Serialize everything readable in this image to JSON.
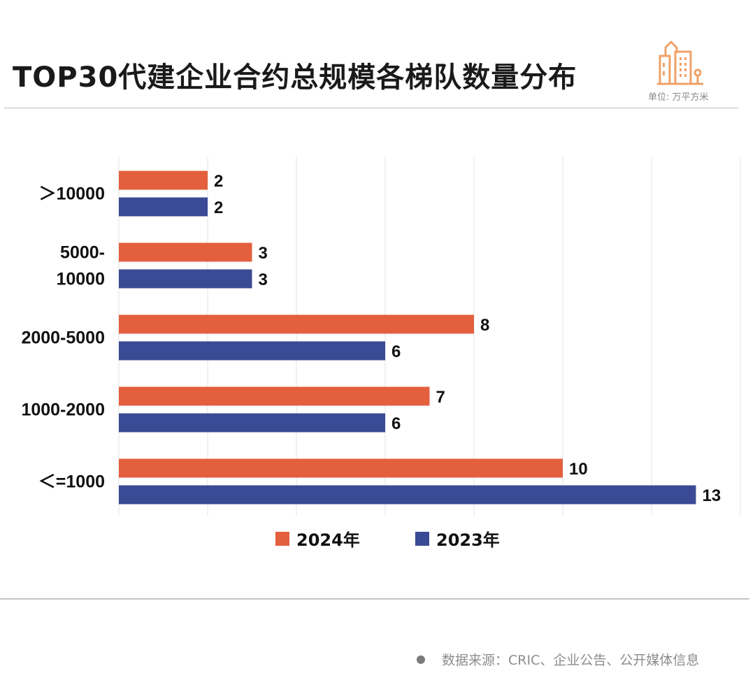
{
  "header": {
    "title": "TOP30代建企业合约总规模各梯队数量分布",
    "unit": "单位: 万平方米",
    "logo_icon": "city-buildings-icon",
    "logo_color": "#EFA168"
  },
  "footer": {
    "source": "数据来源：CRIC、企业公告、公开媒体信息"
  },
  "chart_data": {
    "type": "bar",
    "orientation": "horizontal",
    "title": "TOP30代建企业合约总规模各梯队数量分布",
    "categories": [
      ">10000",
      "5000-10000",
      "2000-5000",
      "1000-2000",
      "<=1000"
    ],
    "category_display": [
      [
        "＞10000"
      ],
      [
        "5000-",
        "10000"
      ],
      [
        "2000-5000"
      ],
      [
        "1000-2000"
      ],
      [
        "＜=1000"
      ]
    ],
    "series": [
      {
        "name": "2024年",
        "color": "#E35F3D",
        "values": [
          2,
          3,
          8,
          7,
          10
        ]
      },
      {
        "name": "2023年",
        "color": "#3B4A94",
        "values": [
          2,
          3,
          6,
          6,
          13
        ]
      }
    ],
    "xlim": [
      0,
      14
    ],
    "grid_step": 2,
    "grid": true,
    "x_tick_labels_shown": false,
    "legend": "bottom-center",
    "xlabel": "",
    "ylabel": ""
  }
}
